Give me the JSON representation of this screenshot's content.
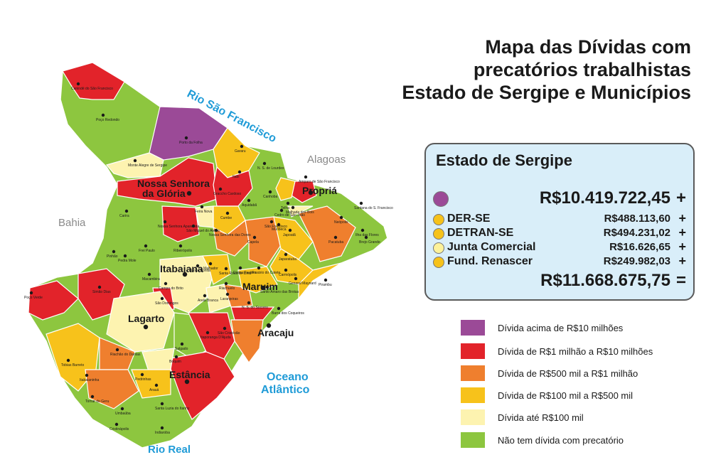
{
  "title": {
    "line1": "Mapa das Dívidas com",
    "line2": "precatórios trabalhistas",
    "line3": "Estado de Sergipe e Municípios"
  },
  "map": {
    "neighbors": {
      "north": "Alagoas",
      "west": "Bahia"
    },
    "rivers": {
      "sao_francisco": "Rio São Francisco",
      "real": "Rio Real"
    },
    "ocean_line1": "Oceano",
    "ocean_line2": "Atlântico",
    "cities_major": [
      "Nossa Senhora",
      "da Glória",
      "Propriá",
      "Itabaiana",
      "Lagarto",
      "Maruim",
      "Aracaju",
      "Estância"
    ],
    "cities_minor": [
      "Canindé do São Francisco",
      "Poço Redondo",
      "Porto da Folha",
      "Monte Alegre de Sergipe",
      "Gararu",
      "N. S. de Lourdes",
      "Itabi",
      "Graccho Cardoso",
      "Amparo de São Francisco",
      "Telha",
      "Canhoba",
      "Aquidabã",
      "Cedro de São João",
      "Neópolis",
      "Santana do S. Francisco",
      "Brejo Grande",
      "Ilha das Flores",
      "Pacatuba",
      "Japoatã",
      "São Francisco",
      "Muribeca",
      "Malhada dos Bois",
      "Carira",
      "Feira Nova",
      "Cumbe",
      "Nossa Senhora Aparecida",
      "São Miguel do Aleixo",
      "Nossa Senhora das Dores",
      "Capela",
      "Japaratuba",
      "Pirambu",
      "Carmópolis",
      "Pinhão",
      "Frei Paulo",
      "Ribeirópolis",
      "Pedra Mole",
      "Macambira",
      "Campo do Brito",
      "Moita Bonita",
      "Malhador",
      "Santa Rosa de Lima",
      "Divina Pastora",
      "Rosário do Catete",
      "General Maynard",
      "Riachuelo",
      "Santo Amaro das Brotas",
      "Areia Branca",
      "Laranjeiras",
      "Barra dos Coqueiros",
      "N. S. do Socorro",
      "Simão Dias",
      "Poço Verde",
      "São Domingos",
      "Riachão do Dantas",
      "Salgado",
      "Itaporanga D'Ajuda",
      "São Cristóvão",
      "Tobias Barreto",
      "Boquim",
      "Pedrinhas",
      "Itabaianinha",
      "Arauá",
      "Tomar do Geru",
      "Umbaúba",
      "Santa Luzia do Itanhy",
      "Cristinápolis",
      "Indiaroba"
    ]
  },
  "state_panel": {
    "heading": "Estado de Sergipe",
    "main_color": "#9b4a97",
    "main_value": "R$10.419.722,45",
    "items": [
      {
        "name": "DER-SE",
        "value": "R$488.113,60",
        "color": "#f6c21a"
      },
      {
        "name": "DETRAN-SE",
        "value": "R$494.231,02",
        "color": "#f6c21a"
      },
      {
        "name": "Junta Comercial",
        "value": "R$16.626,65",
        "color": "#fdf29a"
      },
      {
        "name": "Fund. Renascer",
        "value": "R$249.982,03",
        "color": "#f6c21a"
      }
    ],
    "plus": "+",
    "total_value": "R$11.668.675,75",
    "equals": "="
  },
  "legend": [
    {
      "label": "Dívida acima de R$10 milhões",
      "color": "#9b4a97"
    },
    {
      "label": "Dívida de R$1 milhão a R$10 milhões",
      "color": "#e2232a"
    },
    {
      "label": "Dívida de R$500 mil a R$1 milhão",
      "color": "#ef7f2e"
    },
    {
      "label": "Dívida de R$100 mil a R$500 mil",
      "color": "#f7c21b"
    },
    {
      "label": "Dívida até R$100 mil",
      "color": "#fdf3b0"
    },
    {
      "label": "Não tem dívida com precatório",
      "color": "#8dc63f"
    }
  ]
}
